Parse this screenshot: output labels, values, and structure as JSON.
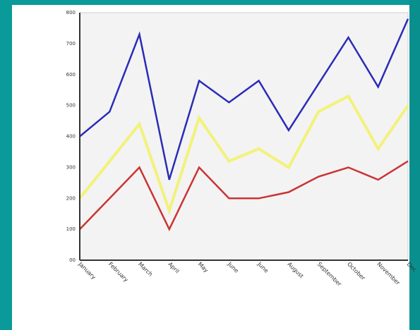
{
  "chart_data": {
    "type": "line",
    "title": "",
    "xlabel": "",
    "ylabel": "",
    "categories": [
      "January",
      "February",
      "March",
      "April",
      "May",
      "June",
      "June",
      "August",
      "September",
      "October",
      "November",
      "Dec"
    ],
    "ylim": [
      0,
      800
    ],
    "yticks": [
      0,
      100,
      200,
      300,
      400,
      500,
      600,
      700,
      800
    ],
    "ytick_labels": [
      "00",
      "100",
      "200",
      "300",
      "400",
      "500",
      "600",
      "700",
      "800"
    ],
    "grid": false,
    "legend": "none",
    "series": [
      {
        "color": "#2b2bb8",
        "values": [
          400,
          480,
          730,
          260,
          580,
          510,
          580,
          420,
          570,
          720,
          560,
          780
        ]
      },
      {
        "color": "#f2f27a",
        "values": [
          200,
          320,
          440,
          160,
          460,
          320,
          360,
          300,
          480,
          530,
          360,
          500
        ]
      },
      {
        "color": "#cc3333",
        "values": [
          100,
          200,
          300,
          100,
          300,
          200,
          200,
          220,
          270,
          300,
          260,
          320
        ]
      }
    ]
  }
}
